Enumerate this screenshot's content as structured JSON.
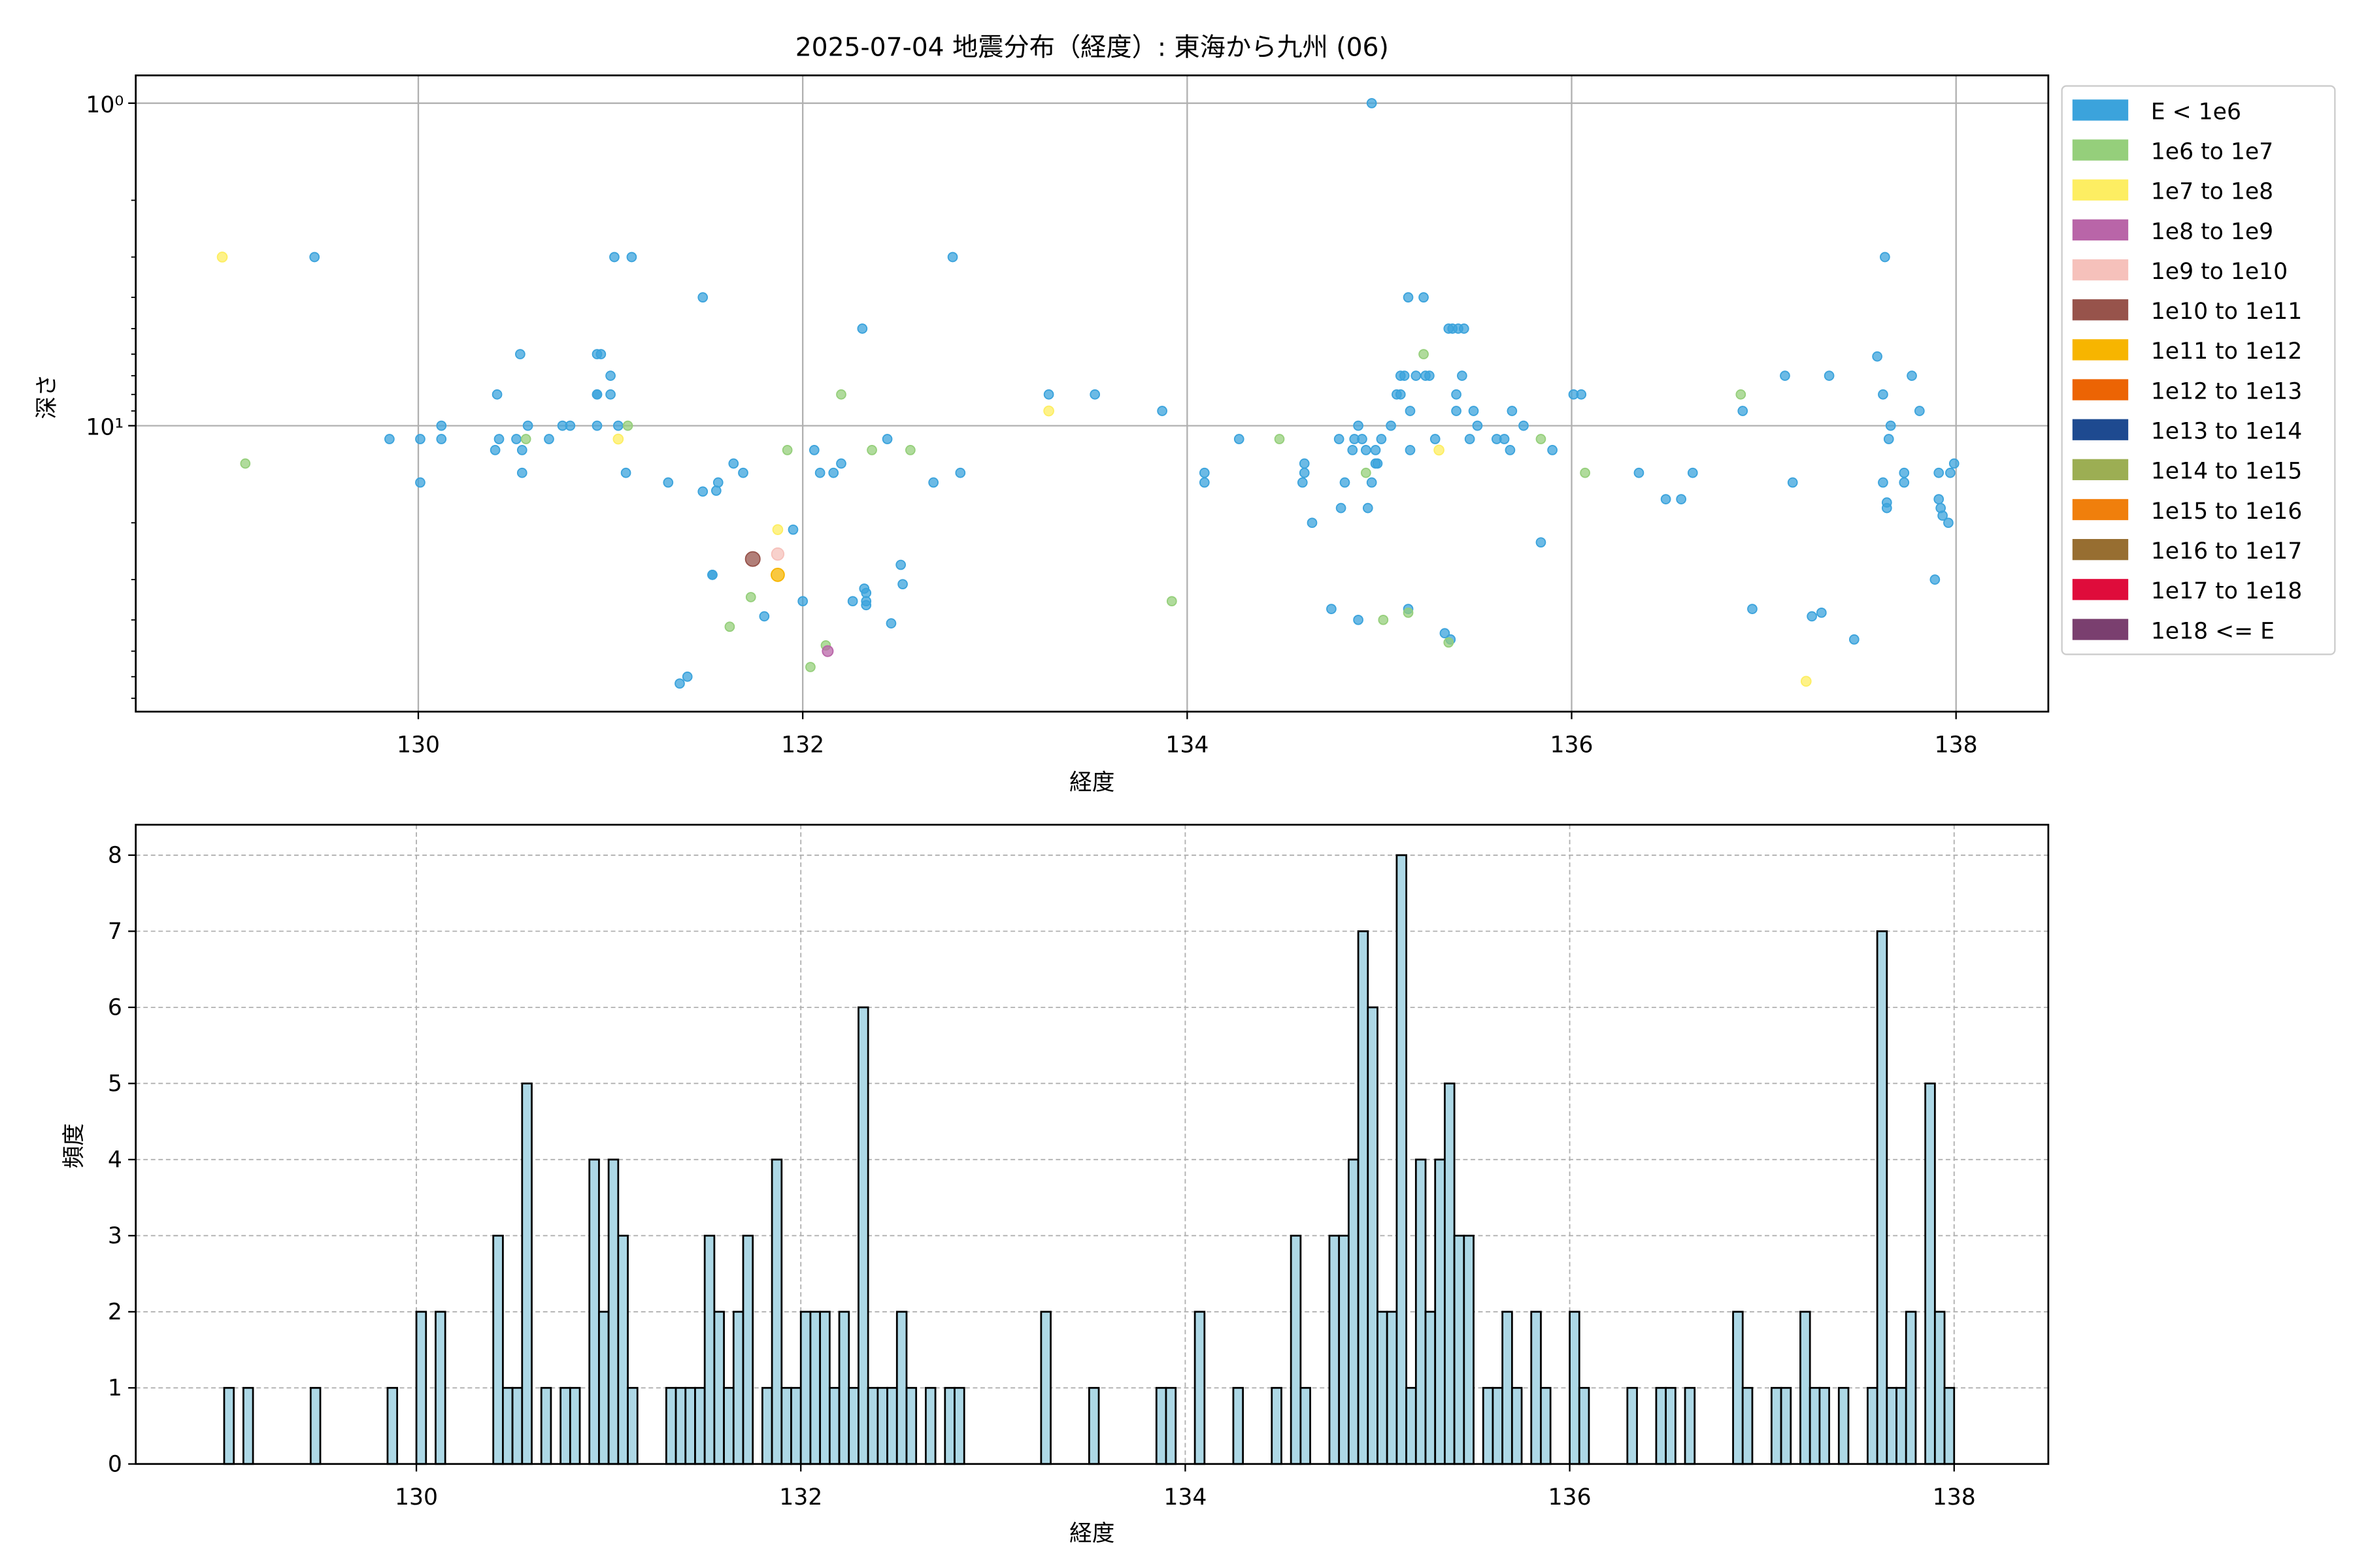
{
  "chart_data": [
    {
      "type": "scatter",
      "title": "2025-07-04 地震分布（経度）: 東海から九州 (06)",
      "xlabel": "経度",
      "ylabel": "深さ",
      "xlim": [
        128.53,
        138.48
      ],
      "ylim": [
        0.82,
        77
      ],
      "yscale": "log",
      "y_inverted": true,
      "grid": true,
      "xticks": [
        "130",
        "132",
        "134",
        "136",
        "138"
      ],
      "xtick_values": [
        130,
        132,
        134,
        136,
        138
      ],
      "yticks": [
        "10⁰",
        "10¹"
      ],
      "ytick_values": [
        1,
        10
      ],
      "legend_position": "outside-right-top",
      "legend": [
        {
          "label": "E < 1e6",
          "color": "#3ba3dc"
        },
        {
          "label": "1e6 to 1e7",
          "color": "#95cf7b"
        },
        {
          "label": "1e7 to 1e8",
          "color": "#fdee62"
        },
        {
          "label": "1e8 to 1e9",
          "color": "#b965a8"
        },
        {
          "label": "1e9 to 1e10",
          "color": "#f6c1bb"
        },
        {
          "label": "1e10 to 1e11",
          "color": "#97534b"
        },
        {
          "label": "1e11 to 1e12",
          "color": "#f7b500"
        },
        {
          "label": "1e12 to 1e13",
          "color": "#ec6404"
        },
        {
          "label": "1e13 to 1e14",
          "color": "#1e4a90"
        },
        {
          "label": "1e14 to 1e15",
          "color": "#9cae53"
        },
        {
          "label": "1e15 to 1e16",
          "color": "#f07f0c"
        },
        {
          "label": "1e16 to 1e17",
          "color": "#976e31"
        },
        {
          "label": "1e17 to 1e18",
          "color": "#df0c3b"
        },
        {
          "label": "1e18 <= E",
          "color": "#7a3f6f"
        }
      ],
      "points_format": [
        "longitude",
        "depth",
        "energy_class_index"
      ],
      "points": [
        [
          128.98,
          3.0,
          2
        ],
        [
          129.1,
          13.1,
          1
        ],
        [
          129.46,
          3.0,
          0
        ],
        [
          129.85,
          11,
          0
        ],
        [
          130.01,
          11,
          0
        ],
        [
          130.01,
          15,
          0
        ],
        [
          130.12,
          10,
          0
        ],
        [
          130.12,
          11,
          0
        ],
        [
          130.41,
          8.0,
          0
        ],
        [
          130.4,
          11.9,
          0
        ],
        [
          130.42,
          11,
          0
        ],
        [
          130.53,
          6.0,
          0
        ],
        [
          130.51,
          11,
          0
        ],
        [
          130.54,
          11.9,
          0
        ],
        [
          130.54,
          14,
          0
        ],
        [
          130.57,
          10,
          0
        ],
        [
          130.56,
          11,
          1
        ],
        [
          130.68,
          11,
          0
        ],
        [
          130.75,
          10,
          0
        ],
        [
          130.79,
          10,
          0
        ],
        [
          130.93,
          6.0,
          0
        ],
        [
          130.95,
          6.0,
          0
        ],
        [
          130.93,
          8.0,
          0
        ],
        [
          130.93,
          8.0,
          0
        ],
        [
          130.93,
          10,
          0
        ],
        [
          131.0,
          8.0,
          0
        ],
        [
          131.0,
          7.0,
          0
        ],
        [
          131.02,
          3.0,
          0
        ],
        [
          131.11,
          3.0,
          0
        ],
        [
          131.04,
          10,
          0
        ],
        [
          131.08,
          14,
          0
        ],
        [
          131.09,
          10,
          1
        ],
        [
          131.04,
          11,
          2
        ],
        [
          131.3,
          15,
          0
        ],
        [
          131.48,
          4.0,
          0
        ],
        [
          131.48,
          16,
          0
        ],
        [
          131.55,
          15.9,
          0
        ],
        [
          131.56,
          15,
          0
        ],
        [
          131.64,
          13.1,
          0
        ],
        [
          131.69,
          14,
          0
        ],
        [
          131.53,
          29,
          0
        ],
        [
          131.53,
          29,
          0
        ],
        [
          131.8,
          39,
          0
        ],
        [
          131.95,
          21,
          0
        ],
        [
          132.0,
          35,
          0
        ],
        [
          132.06,
          11.9,
          0
        ],
        [
          132.09,
          14,
          0
        ],
        [
          132.16,
          14,
          0
        ],
        [
          132.2,
          13.1,
          0
        ],
        [
          132.31,
          5.0,
          0
        ],
        [
          132.44,
          11,
          0
        ],
        [
          132.26,
          35,
          0
        ],
        [
          132.32,
          32,
          0
        ],
        [
          132.33,
          33,
          0
        ],
        [
          132.33,
          35,
          0
        ],
        [
          132.33,
          36,
          0
        ],
        [
          132.51,
          27,
          0
        ],
        [
          132.52,
          31,
          0
        ],
        [
          132.46,
          41,
          0
        ],
        [
          132.68,
          15,
          0
        ],
        [
          132.78,
          3.0,
          0
        ],
        [
          132.82,
          14,
          0
        ],
        [
          131.36,
          63,
          0
        ],
        [
          131.4,
          60,
          0
        ],
        [
          131.92,
          11.9,
          1
        ],
        [
          132.2,
          8.0,
          1
        ],
        [
          132.36,
          11.9,
          1
        ],
        [
          132.56,
          11.9,
          1
        ],
        [
          131.73,
          34,
          1
        ],
        [
          131.62,
          42,
          1
        ],
        [
          132.12,
          48,
          1
        ],
        [
          132.04,
          56,
          1
        ],
        [
          131.87,
          21,
          2
        ],
        [
          131.87,
          25,
          4
        ],
        [
          131.74,
          25.9,
          5
        ],
        [
          131.87,
          29,
          6
        ],
        [
          132.13,
          50,
          3
        ],
        [
          133.28,
          9.0,
          2
        ],
        [
          133.28,
          8.0,
          0
        ],
        [
          133.52,
          8.0,
          0
        ],
        [
          133.87,
          9.0,
          0
        ],
        [
          133.92,
          35,
          1
        ],
        [
          134.09,
          14,
          0
        ],
        [
          134.09,
          15,
          0
        ],
        [
          134.27,
          11,
          0
        ],
        [
          134.48,
          11,
          1
        ],
        [
          134.61,
          13.1,
          0
        ],
        [
          134.61,
          14,
          0
        ],
        [
          134.6,
          15,
          0
        ],
        [
          134.65,
          20,
          0
        ],
        [
          134.75,
          37,
          0
        ],
        [
          134.79,
          11,
          0
        ],
        [
          134.8,
          18,
          0
        ],
        [
          134.82,
          15,
          0
        ],
        [
          134.87,
          11,
          0
        ],
        [
          134.89,
          40,
          0
        ],
        [
          134.86,
          11.9,
          0
        ],
        [
          134.89,
          10,
          0
        ],
        [
          134.91,
          11,
          0
        ],
        [
          134.93,
          11.9,
          0
        ],
        [
          134.94,
          18,
          0
        ],
        [
          134.96,
          1.0,
          0
        ],
        [
          134.98,
          11.9,
          0
        ],
        [
          134.98,
          13.1,
          0
        ],
        [
          134.96,
          15,
          0
        ],
        [
          134.99,
          13.1,
          0
        ],
        [
          135.01,
          11,
          0
        ],
        [
          135.06,
          10,
          0
        ],
        [
          135.09,
          8.0,
          0
        ],
        [
          135.11,
          7.0,
          0
        ],
        [
          135.11,
          8.0,
          0
        ],
        [
          135.13,
          7.0,
          0
        ],
        [
          135.15,
          4.0,
          0
        ],
        [
          135.15,
          37,
          0
        ],
        [
          135.16,
          9.0,
          0
        ],
        [
          135.16,
          11.9,
          0
        ],
        [
          135.19,
          7.0,
          0
        ],
        [
          135.23,
          4.0,
          0
        ],
        [
          135.24,
          7.0,
          0
        ],
        [
          135.26,
          7.0,
          0
        ],
        [
          135.29,
          11,
          0
        ],
        [
          135.36,
          5.0,
          0
        ],
        [
          135.38,
          5.0,
          0
        ],
        [
          135.41,
          5.0,
          0
        ],
        [
          135.44,
          5.0,
          0
        ],
        [
          135.34,
          44,
          0
        ],
        [
          135.37,
          46,
          0
        ],
        [
          135.4,
          9.0,
          0
        ],
        [
          135.4,
          8.0,
          0
        ],
        [
          135.43,
          7.0,
          0
        ],
        [
          135.47,
          11,
          0
        ],
        [
          135.49,
          9.0,
          0
        ],
        [
          135.51,
          10,
          0
        ],
        [
          135.61,
          11,
          0
        ],
        [
          135.65,
          11,
          0
        ],
        [
          135.68,
          11.9,
          0
        ],
        [
          135.69,
          9.0,
          0
        ],
        [
          135.75,
          10,
          0
        ],
        [
          135.84,
          23,
          0
        ],
        [
          135.9,
          11.9,
          0
        ],
        [
          136.01,
          8.0,
          0
        ],
        [
          136.05,
          8.0,
          0
        ],
        [
          136.35,
          14,
          0
        ],
        [
          136.49,
          16.9,
          0
        ],
        [
          136.57,
          16.9,
          0
        ],
        [
          136.63,
          14,
          0
        ],
        [
          136.89,
          9.0,
          0
        ],
        [
          136.94,
          37,
          0
        ],
        [
          137.11,
          7.0,
          0
        ],
        [
          137.15,
          15,
          0
        ],
        [
          137.25,
          39,
          0
        ],
        [
          137.3,
          38,
          0
        ],
        [
          137.34,
          7.0,
          0
        ],
        [
          137.47,
          46,
          0
        ],
        [
          137.59,
          6.1,
          0
        ],
        [
          137.62,
          15,
          0
        ],
        [
          137.64,
          17.3,
          0
        ],
        [
          137.64,
          18,
          0
        ],
        [
          137.62,
          8.0,
          0
        ],
        [
          137.63,
          3.0,
          0
        ],
        [
          137.65,
          11,
          0
        ],
        [
          137.66,
          10,
          0
        ],
        [
          137.73,
          14,
          0
        ],
        [
          137.73,
          15,
          0
        ],
        [
          137.77,
          7.0,
          0
        ],
        [
          137.81,
          9.0,
          0
        ],
        [
          137.89,
          30,
          0
        ],
        [
          137.91,
          14,
          0
        ],
        [
          137.91,
          16.9,
          0
        ],
        [
          137.92,
          18,
          0
        ],
        [
          137.93,
          19,
          0
        ],
        [
          137.96,
          20,
          0
        ],
        [
          137.97,
          14,
          0
        ],
        [
          137.99,
          13.1,
          0
        ],
        [
          134.93,
          14,
          1
        ],
        [
          135.02,
          40,
          1
        ],
        [
          135.15,
          38,
          1
        ],
        [
          135.23,
          6.0,
          1
        ],
        [
          135.36,
          47,
          1
        ],
        [
          135.84,
          11,
          1
        ],
        [
          136.07,
          14,
          1
        ],
        [
          136.88,
          8.0,
          1
        ],
        [
          135.31,
          11.9,
          2
        ],
        [
          137.22,
          62,
          2
        ]
      ]
    },
    {
      "type": "bar",
      "subtype": "histogram",
      "xlabel": "経度",
      "ylabel": "頻度",
      "xlim": [
        128.54,
        138.49
      ],
      "ylim": [
        0,
        8.4
      ],
      "grid": true,
      "bin_width": 0.05,
      "bar_color": "#add8e6",
      "xticks": [
        "130",
        "132",
        "134",
        "136",
        "138"
      ],
      "xtick_values": [
        130,
        132,
        134,
        136,
        138
      ],
      "yticks": [
        "0",
        "1",
        "2",
        "3",
        "4",
        "5",
        "6",
        "7",
        "8"
      ],
      "ytick_values": [
        0,
        1,
        2,
        3,
        4,
        5,
        6,
        7,
        8
      ],
      "bars_format": [
        "bin_left_longitude",
        "count"
      ],
      "bars": [
        [
          129.0,
          1
        ],
        [
          129.1,
          1
        ],
        [
          129.45,
          1
        ],
        [
          129.85,
          1
        ],
        [
          130.0,
          2
        ],
        [
          130.1,
          2
        ],
        [
          130.4,
          3
        ],
        [
          130.45,
          1
        ],
        [
          130.5,
          1
        ],
        [
          130.55,
          5
        ],
        [
          130.65,
          1
        ],
        [
          130.75,
          1
        ],
        [
          130.8,
          1
        ],
        [
          130.9,
          4
        ],
        [
          130.95,
          2
        ],
        [
          131.0,
          4
        ],
        [
          131.05,
          3
        ],
        [
          131.1,
          1
        ],
        [
          131.3,
          1
        ],
        [
          131.35,
          1
        ],
        [
          131.4,
          1
        ],
        [
          131.45,
          1
        ],
        [
          131.5,
          3
        ],
        [
          131.55,
          2
        ],
        [
          131.6,
          1
        ],
        [
          131.65,
          2
        ],
        [
          131.7,
          3
        ],
        [
          131.8,
          1
        ],
        [
          131.85,
          4
        ],
        [
          131.9,
          1
        ],
        [
          131.95,
          1
        ],
        [
          132.0,
          2
        ],
        [
          132.05,
          2
        ],
        [
          132.1,
          2
        ],
        [
          132.15,
          1
        ],
        [
          132.2,
          2
        ],
        [
          132.25,
          1
        ],
        [
          132.3,
          6
        ],
        [
          132.35,
          1
        ],
        [
          132.4,
          1
        ],
        [
          132.45,
          1
        ],
        [
          132.5,
          2
        ],
        [
          132.55,
          1
        ],
        [
          132.65,
          1
        ],
        [
          132.75,
          1
        ],
        [
          132.8,
          1
        ],
        [
          133.25,
          2
        ],
        [
          133.5,
          1
        ],
        [
          133.85,
          1
        ],
        [
          133.9,
          1
        ],
        [
          134.05,
          2
        ],
        [
          134.25,
          1
        ],
        [
          134.45,
          1
        ],
        [
          134.55,
          3
        ],
        [
          134.6,
          1
        ],
        [
          134.75,
          3
        ],
        [
          134.8,
          3
        ],
        [
          134.85,
          4
        ],
        [
          134.9,
          7
        ],
        [
          134.95,
          6
        ],
        [
          135.0,
          2
        ],
        [
          135.05,
          2
        ],
        [
          135.1,
          8
        ],
        [
          135.15,
          1
        ],
        [
          135.2,
          4
        ],
        [
          135.25,
          2
        ],
        [
          135.3,
          4
        ],
        [
          135.35,
          5
        ],
        [
          135.4,
          3
        ],
        [
          135.45,
          3
        ],
        [
          135.55,
          1
        ],
        [
          135.6,
          1
        ],
        [
          135.65,
          2
        ],
        [
          135.7,
          1
        ],
        [
          135.8,
          2
        ],
        [
          135.85,
          1
        ],
        [
          136.0,
          2
        ],
        [
          136.05,
          1
        ],
        [
          136.3,
          1
        ],
        [
          136.45,
          1
        ],
        [
          136.5,
          1
        ],
        [
          136.6,
          1
        ],
        [
          136.85,
          2
        ],
        [
          136.9,
          1
        ],
        [
          137.05,
          1
        ],
        [
          137.1,
          1
        ],
        [
          137.2,
          2
        ],
        [
          137.25,
          1
        ],
        [
          137.3,
          1
        ],
        [
          137.4,
          1
        ],
        [
          137.55,
          1
        ],
        [
          137.6,
          7
        ],
        [
          137.65,
          1
        ],
        [
          137.7,
          1
        ],
        [
          137.75,
          2
        ],
        [
          137.85,
          5
        ],
        [
          137.9,
          2
        ],
        [
          137.95,
          1
        ]
      ]
    }
  ]
}
